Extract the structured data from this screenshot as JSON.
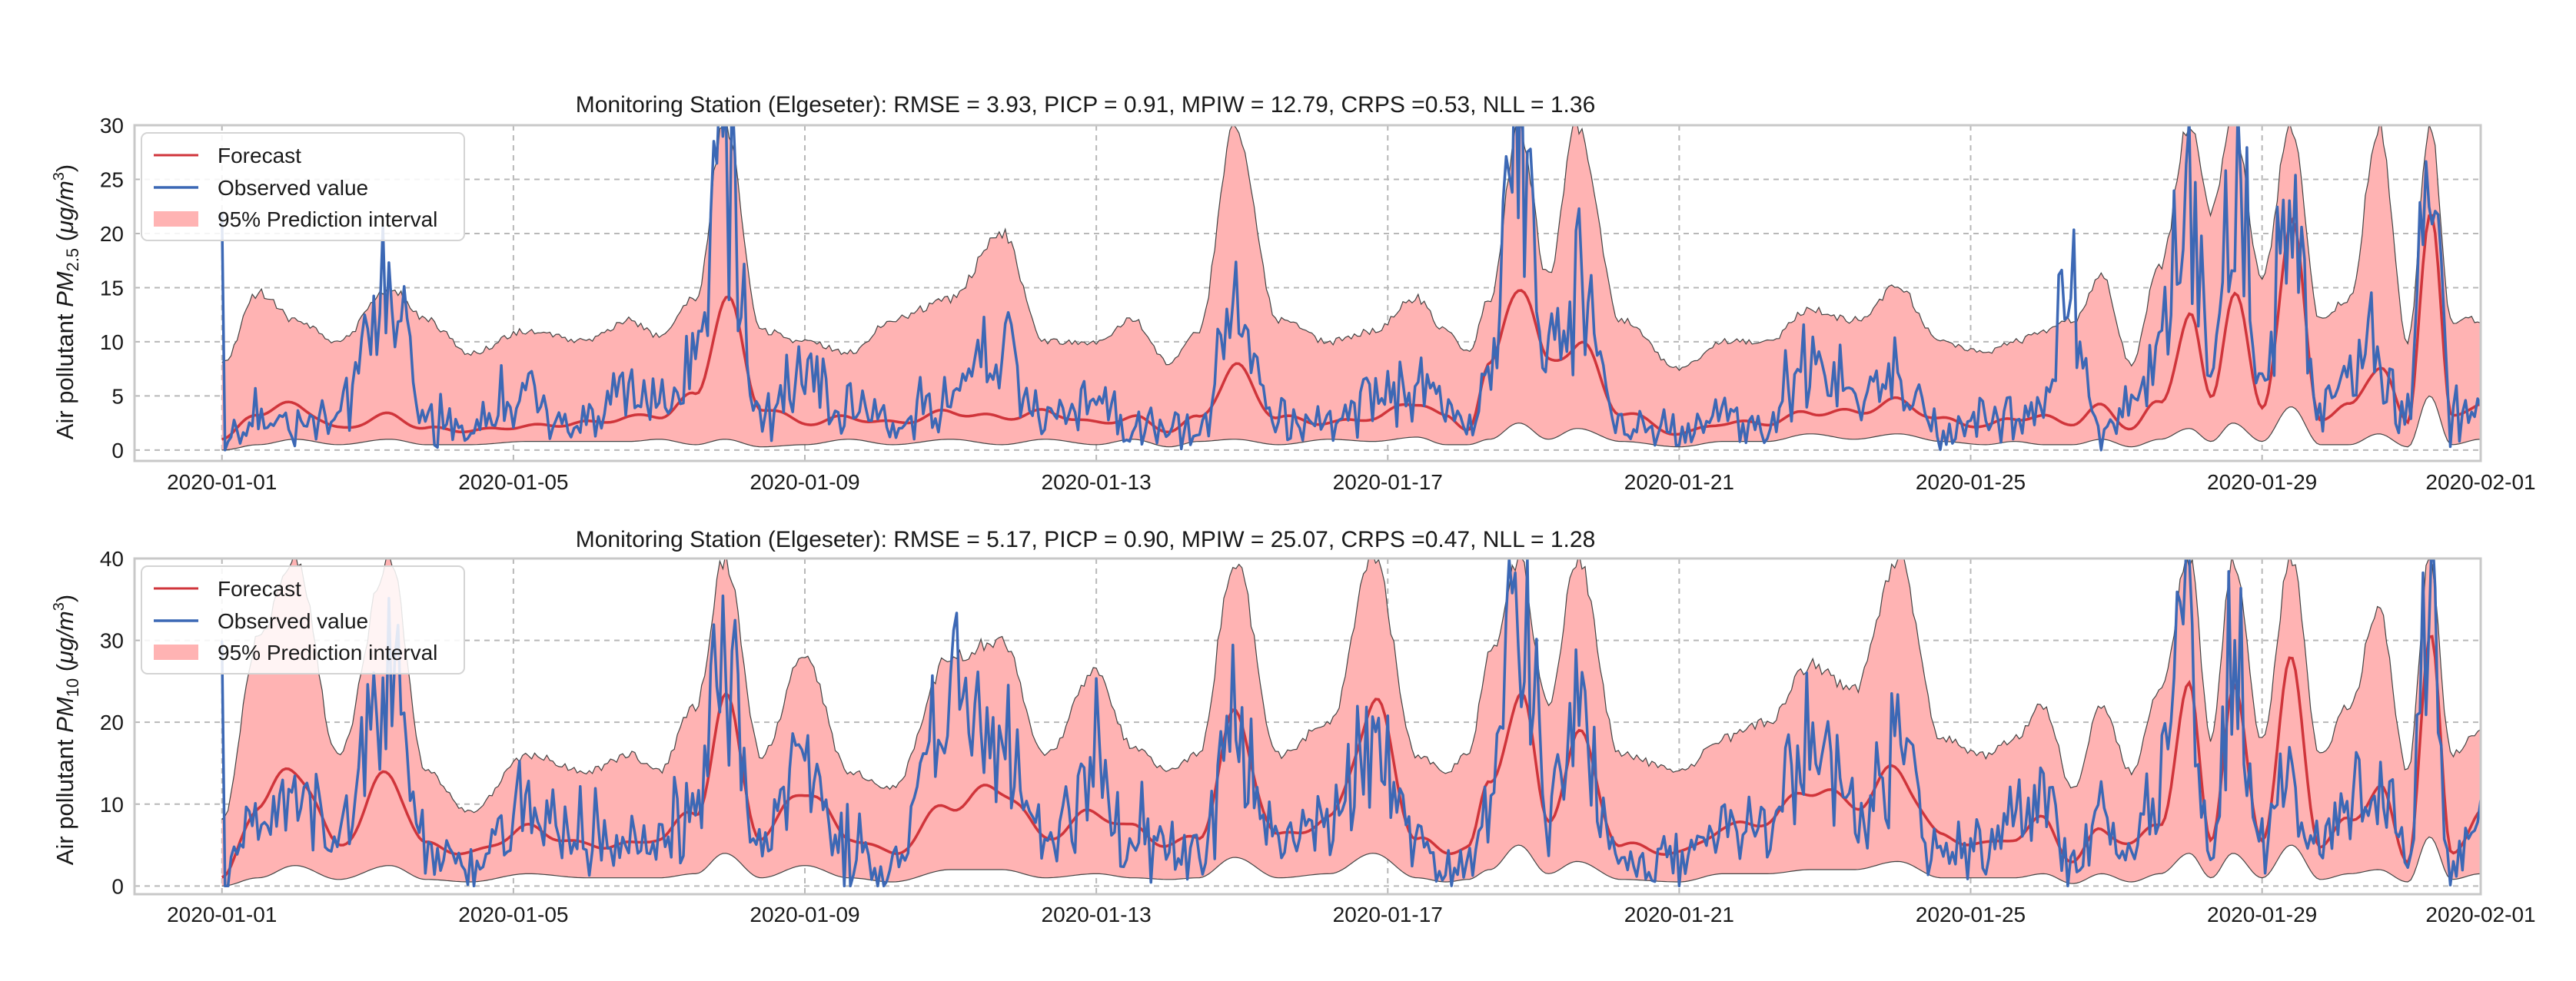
{
  "colors": {
    "forecast": "#d0353b",
    "observed": "#3c68b5",
    "interval_fill": "#ffb3b3",
    "interval_edge": "#444444",
    "grid": "#b8b8b8",
    "frame": "#c8c8c8"
  },
  "x_ticks": [
    "2020-01-01",
    "2020-01-05",
    "2020-01-09",
    "2020-01-13",
    "2020-01-17",
    "2020-01-21",
    "2020-01-25",
    "2020-01-29",
    "2020-02-01"
  ],
  "legend": {
    "forecast": "Forecast",
    "observed": "Observed value",
    "interval": "95% Prediction interval"
  },
  "chart_data": [
    {
      "type": "line",
      "title": "Monitoring Station (Elgeseter): RMSE = 3.93, PICP = 0.91, MPIW = 12.79, CRPS =0.53, NLL = 1.36",
      "ylabel_prefix": "Air pollutant ",
      "ylabel_pm": "PM",
      "ylabel_sub": "2.5",
      "ylabel_unit_open": " (",
      "ylabel_unit_mu": "μg",
      "ylabel_unit_m": "/m",
      "ylabel_unit_exp": "3",
      "ylabel_unit_close": ")",
      "xlim_days": [
        -1.2,
        31.0
      ],
      "ylim": [
        -1,
        30
      ],
      "yticks": [
        0,
        5,
        10,
        15,
        20,
        25,
        30
      ],
      "legend_position": "upper-left",
      "series_anchor_days": [
        0,
        0.5,
        1,
        1.6,
        2.3,
        2.8,
        3.4,
        4.2,
        5.0,
        5.6,
        6.0,
        6.5,
        6.9,
        7.4,
        8.0,
        8.6,
        9.2,
        10.0,
        10.7,
        11.3,
        12.0,
        12.5,
        13.0,
        13.4,
        13.9,
        14.5,
        15.2,
        15.8,
        16.4,
        16.8,
        17.1,
        17.4,
        17.8,
        18.2,
        18.6,
        19.2,
        20.0,
        20.6,
        21.2,
        21.8,
        22.4,
        23.0,
        23.6,
        24.2,
        24.6,
        25.0,
        25.4,
        25.8,
        26.2,
        26.6,
        27.0,
        27.3,
        27.6,
        28.0,
        28.4,
        28.8,
        29.2,
        29.6,
        30.0,
        30.3,
        30.6,
        31.0
      ],
      "forecast_anchors": [
        1.0,
        3.5,
        4.2,
        2.0,
        3.2,
        2.0,
        1.8,
        2.2,
        2.5,
        3.0,
        3.2,
        5.0,
        14.0,
        4.0,
        2.5,
        3.0,
        2.5,
        3.5,
        3.0,
        3.5,
        2.5,
        3.0,
        1.8,
        3.0,
        7.5,
        3.0,
        2.5,
        3.0,
        4.5,
        3.0,
        2.0,
        7.5,
        16.0,
        8.0,
        10.0,
        3.5,
        1.5,
        2.5,
        2.5,
        3.5,
        3.5,
        4.5,
        2.8,
        2.2,
        3.0,
        3.0,
        2.5,
        4.0,
        2.0,
        4.5,
        12.0,
        5.0,
        14.5,
        4.0,
        20.0,
        3.0,
        4.0,
        8.0,
        2.5,
        23.0,
        3.0,
        4.5
      ],
      "observed_anchors": [
        0,
        3.0,
        2.0,
        3.0,
        15.0,
        3.0,
        2.0,
        4.0,
        2.5,
        5.0,
        4.0,
        8.0,
        25.0,
        3.0,
        7.0,
        3.5,
        2.5,
        5.0,
        10.0,
        3.0,
        5.0,
        2.0,
        3.0,
        2.0,
        12.0,
        3.0,
        2.0,
        5.0,
        6.0,
        4.0,
        2.0,
        8.0,
        30.0,
        8.0,
        15.0,
        2.0,
        2.0,
        3.0,
        2.0,
        9.0,
        5.0,
        6.0,
        2.0,
        3.0,
        3.0,
        5.0,
        14.5,
        1.5,
        4.0,
        10.0,
        24.0,
        6.0,
        27.5,
        5.0,
        22.0,
        4.0,
        7.0,
        11.0,
        2.0,
        30.0,
        2.0,
        4.0
      ],
      "lower_anchors": [
        0,
        0.5,
        1.0,
        0.5,
        1.0,
        0.5,
        0.5,
        0.8,
        0.8,
        0.8,
        1.0,
        0.5,
        1.0,
        0.3,
        0.5,
        1.0,
        0.5,
        1.0,
        0.5,
        1.0,
        0.5,
        1.0,
        0.3,
        0.8,
        1.0,
        0.5,
        1.0,
        0.8,
        1.2,
        0.5,
        0.5,
        1.0,
        2.5,
        1.0,
        2.0,
        0.8,
        0.3,
        0.8,
        0.8,
        1.5,
        1.0,
        1.5,
        0.8,
        0.5,
        0.8,
        0.5,
        0.5,
        1.0,
        0.3,
        1.0,
        2.0,
        0.8,
        2.5,
        0.8,
        4.0,
        0.5,
        0.5,
        1.5,
        0.3,
        5.0,
        0.5,
        1.0
      ],
      "upper_anchors": [
        8.0,
        14.5,
        12.0,
        10.0,
        15.0,
        12.0,
        9.0,
        11.0,
        10.0,
        12.0,
        10.5,
        14.0,
        30.0,
        11.0,
        10.0,
        9.0,
        12.0,
        14.0,
        20.0,
        10.0,
        10.0,
        12.0,
        8.0,
        11.0,
        30.0,
        12.0,
        10.0,
        11.0,
        14.0,
        11.0,
        9.0,
        14.0,
        30.0,
        16.0,
        30.0,
        12.0,
        7.5,
        10.0,
        10.0,
        13.0,
        12.0,
        15.0,
        10.0,
        9.0,
        10.0,
        11.0,
        12.0,
        16.0,
        8.0,
        17.0,
        30.0,
        22.0,
        30.0,
        16.0,
        30.0,
        12.0,
        14.0,
        30.0,
        10.0,
        30.0,
        12.0,
        12.0
      ]
    },
    {
      "type": "line",
      "title": "Monitoring Station (Elgeseter): RMSE = 5.17, PICP = 0.90, MPIW = 25.07, CRPS =0.47, NLL = 1.28",
      "ylabel_prefix": "Air pollutant ",
      "ylabel_pm": "PM",
      "ylabel_sub": "10",
      "ylabel_unit_open": " (",
      "ylabel_unit_mu": "μg",
      "ylabel_unit_m": "/m",
      "ylabel_unit_exp": "3",
      "ylabel_unit_close": ")",
      "xlim_days": [
        -1.2,
        31.0
      ],
      "ylim": [
        -1,
        40
      ],
      "yticks": [
        0,
        10,
        20,
        30,
        40
      ],
      "legend_position": "upper-left",
      "series_anchor_days": [
        0,
        0.5,
        1,
        1.6,
        2.3,
        2.8,
        3.4,
        4.2,
        5.0,
        5.6,
        6.0,
        6.5,
        6.9,
        7.4,
        8.0,
        8.6,
        9.2,
        10.0,
        10.7,
        11.3,
        12.0,
        12.5,
        13.0,
        13.4,
        13.9,
        14.5,
        15.2,
        15.8,
        16.4,
        16.8,
        17.1,
        17.4,
        17.8,
        18.2,
        18.6,
        19.2,
        20.0,
        20.6,
        21.2,
        21.8,
        22.4,
        23.0,
        23.6,
        24.2,
        24.6,
        25.0,
        25.4,
        25.8,
        26.2,
        26.6,
        27.0,
        27.3,
        27.6,
        28.0,
        28.4,
        28.8,
        29.2,
        29.6,
        30.0,
        30.3,
        30.6,
        31.0
      ],
      "forecast_anchors": [
        1.0,
        10.0,
        14.5,
        5.0,
        13.5,
        5.0,
        4.0,
        7.0,
        5.0,
        5.0,
        6.0,
        9.0,
        22.0,
        6.0,
        12.0,
        6.0,
        4.0,
        10.0,
        12.0,
        6.0,
        9.0,
        7.0,
        5.0,
        6.0,
        20.0,
        6.0,
        8.0,
        22.0,
        6.0,
        4.0,
        5.0,
        12.0,
        24.0,
        8.0,
        18.0,
        5.0,
        4.0,
        7.0,
        8.0,
        12.0,
        10.0,
        14.0,
        6.0,
        5.0,
        6.0,
        8.0,
        3.0,
        7.0,
        5.0,
        8.0,
        23.0,
        6.0,
        23.0,
        6.0,
        26.0,
        5.0,
        8.0,
        12.0,
        3.0,
        30.0,
        4.0,
        9.0
      ],
      "observed_anchors": [
        0,
        8.0,
        10.0,
        6.0,
        25.0,
        4.0,
        2.0,
        8.0,
        5.0,
        6.0,
        5.0,
        10.0,
        31.0,
        4.0,
        15.0,
        3.0,
        2.0,
        24.0,
        16.0,
        5.0,
        14.0,
        4.0,
        4.0,
        3.0,
        20.0,
        5.0,
        8.0,
        17.0,
        5.0,
        3.0,
        3.0,
        10.0,
        40.0,
        8.0,
        20.0,
        3.0,
        3.0,
        6.0,
        7.0,
        18.0,
        9.0,
        16.0,
        4.0,
        5.0,
        8.0,
        10.0,
        2.0,
        9.0,
        3.0,
        12.0,
        34.0,
        5.0,
        29.0,
        5.0,
        12.0,
        5.0,
        10.0,
        14.0,
        2.0,
        38.0,
        2.0,
        8.0
      ],
      "lower_anchors": [
        0,
        1.0,
        2.5,
        0.8,
        2.5,
        0.8,
        0.5,
        1.5,
        1.0,
        1.0,
        1.0,
        1.5,
        4.0,
        1.0,
        2.5,
        1.0,
        0.5,
        2.0,
        2.0,
        1.0,
        1.5,
        1.0,
        0.8,
        1.0,
        3.5,
        1.0,
        1.5,
        4.0,
        1.0,
        0.5,
        0.8,
        2.0,
        5.0,
        1.5,
        3.0,
        0.8,
        0.5,
        1.5,
        1.5,
        2.0,
        2.0,
        3.0,
        1.0,
        1.0,
        1.0,
        1.5,
        0.3,
        1.5,
        0.5,
        1.5,
        4.0,
        1.0,
        4.0,
        1.0,
        5.0,
        0.8,
        1.5,
        2.0,
        0.5,
        6.0,
        0.8,
        1.5
      ],
      "upper_anchors": [
        8.0,
        30.0,
        40.0,
        16.0,
        40.0,
        14.0,
        9.0,
        16.0,
        14.0,
        16.0,
        14.0,
        22.0,
        40.0,
        16.0,
        28.0,
        14.0,
        12.0,
        28.0,
        30.0,
        16.0,
        26.0,
        17.0,
        14.0,
        16.0,
        40.0,
        16.0,
        20.0,
        40.0,
        16.0,
        14.0,
        16.0,
        28.0,
        40.0,
        22.0,
        40.0,
        16.0,
        14.0,
        18.0,
        20.0,
        27.0,
        24.0,
        40.0,
        18.0,
        16.0,
        18.0,
        22.0,
        12.0,
        22.0,
        14.0,
        24.0,
        40.0,
        18.0,
        40.0,
        18.0,
        40.0,
        16.0,
        22.0,
        34.0,
        14.0,
        40.0,
        16.0,
        19.0
      ]
    }
  ]
}
